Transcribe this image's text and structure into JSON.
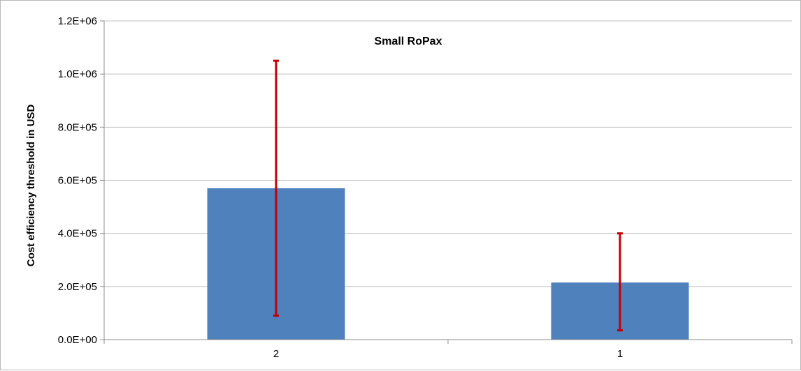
{
  "chart_data": {
    "type": "bar",
    "title": "Small RoPax",
    "xlabel": "",
    "ylabel": "Cost efficiency threshold  in USD",
    "categories": [
      "2",
      "1"
    ],
    "values": [
      570000,
      215000
    ],
    "error_bars": {
      "lower": [
        90000,
        35000
      ],
      "upper": [
        1050000,
        400000
      ]
    },
    "ylim": [
      0,
      1200000
    ],
    "yticks": [
      0,
      200000,
      400000,
      600000,
      800000,
      1000000,
      1200000
    ],
    "ytick_labels": [
      "0.0E+00",
      "2.0E+05",
      "4.0E+05",
      "6.0E+05",
      "8.0E+05",
      "1.0E+06",
      "1.2E+06"
    ],
    "grid": true,
    "legend": "none",
    "colors": {
      "bar": "#4f81bd",
      "error_bar": "#c00000",
      "grid": "#bfbfbf",
      "axis": "#8c8c8c"
    }
  }
}
